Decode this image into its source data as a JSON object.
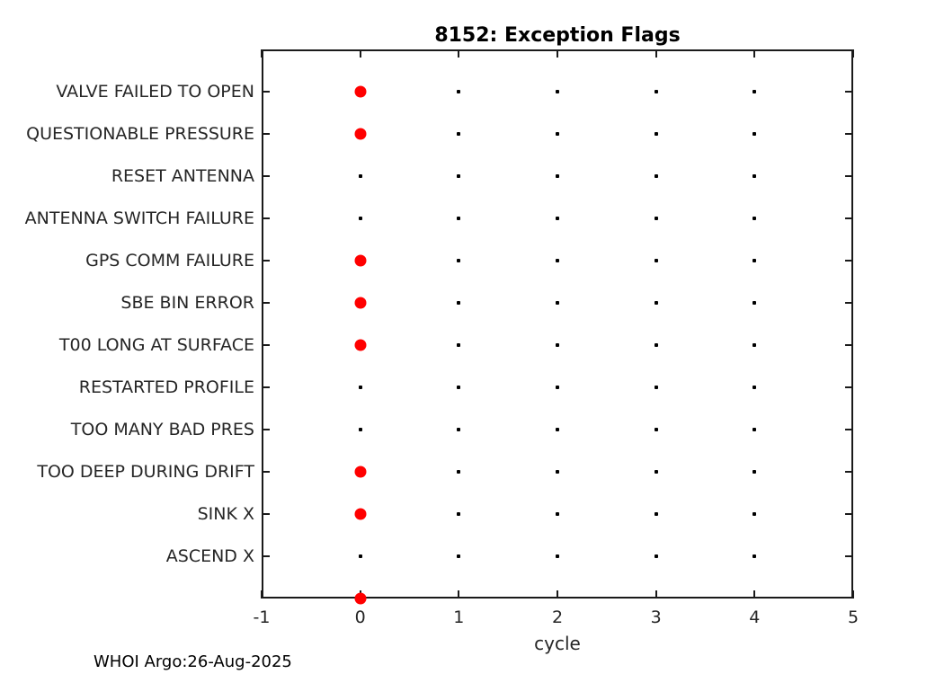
{
  "title": "8152: Exception Flags",
  "footer": "WHOI Argo:26-Aug-2025",
  "colors": {
    "flag_marker": "#ff0000",
    "dot_marker": "#000000",
    "axis": "#1a1a1a",
    "tick_label": "#262626"
  },
  "chart_data": {
    "type": "scatter",
    "title": "8152: Exception Flags",
    "xlabel": "cycle",
    "ylabel": "",
    "xlim": [
      -1,
      5
    ],
    "ylim": [
      0,
      13
    ],
    "xticks": [
      -1,
      0,
      1,
      2,
      3,
      4,
      5
    ],
    "grid": false,
    "legend": "none",
    "marker_legend": {
      "red_dot": "flag raised (large red marker)",
      "small_dot": "no flag (small black marker)"
    },
    "rows": [
      {
        "y": 12,
        "label": "VALVE FAILED TO OPEN",
        "red_dots_x": [
          0
        ],
        "small_dots_x": [
          1,
          2,
          3,
          4
        ]
      },
      {
        "y": 11,
        "label": "QUESTIONABLE PRESSURE",
        "red_dots_x": [
          0
        ],
        "small_dots_x": [
          1,
          2,
          3,
          4
        ]
      },
      {
        "y": 10,
        "label": "RESET ANTENNA",
        "red_dots_x": [],
        "small_dots_x": [
          0,
          1,
          2,
          3,
          4
        ]
      },
      {
        "y": 9,
        "label": "ANTENNA SWITCH FAILURE",
        "red_dots_x": [],
        "small_dots_x": [
          0,
          1,
          2,
          3,
          4
        ]
      },
      {
        "y": 8,
        "label": "GPS COMM FAILURE",
        "red_dots_x": [
          0
        ],
        "small_dots_x": [
          1,
          2,
          3,
          4
        ]
      },
      {
        "y": 7,
        "label": "SBE BIN ERROR",
        "red_dots_x": [
          0
        ],
        "small_dots_x": [
          1,
          2,
          3,
          4
        ]
      },
      {
        "y": 6,
        "label": "T00 LONG AT SURFACE",
        "red_dots_x": [
          0
        ],
        "small_dots_x": [
          1,
          2,
          3,
          4
        ]
      },
      {
        "y": 5,
        "label": "RESTARTED PROFILE",
        "red_dots_x": [],
        "small_dots_x": [
          0,
          1,
          2,
          3,
          4
        ]
      },
      {
        "y": 4,
        "label": "TOO MANY BAD PRES",
        "red_dots_x": [],
        "small_dots_x": [
          0,
          1,
          2,
          3,
          4
        ]
      },
      {
        "y": 3,
        "label": "TOO DEEP DURING DRIFT",
        "red_dots_x": [
          0
        ],
        "small_dots_x": [
          1,
          2,
          3,
          4
        ]
      },
      {
        "y": 2,
        "label": "SINK X",
        "red_dots_x": [
          0
        ],
        "small_dots_x": [
          1,
          2,
          3,
          4
        ]
      },
      {
        "y": 1,
        "label": "ASCEND X",
        "red_dots_x": [],
        "small_dots_x": [
          0,
          1,
          2,
          3,
          4
        ]
      },
      {
        "y": 0,
        "label": "",
        "red_dots_x": [
          0
        ],
        "small_dots_x": []
      }
    ]
  }
}
